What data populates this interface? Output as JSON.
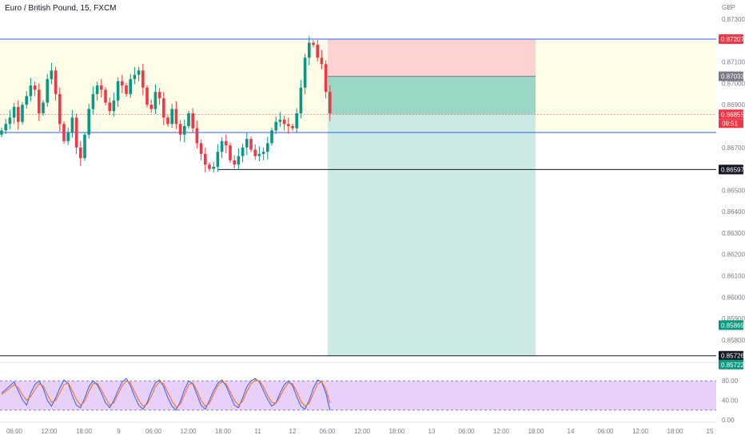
{
  "header": {
    "symbol_title": "Euro / British Pound, 15, FXCM",
    "currency": "GBP"
  },
  "price_axis": {
    "ticks": [
      "0.87300",
      "0.87100",
      "0.87000",
      "0.86900",
      "0.86700",
      "0.86500",
      "0.86400",
      "0.86300",
      "0.86200",
      "0.86100",
      "0.86000",
      "0.85900",
      "0.85800"
    ],
    "tick_values": [
      0.873,
      0.871,
      0.87,
      0.869,
      0.867,
      0.865,
      0.864,
      0.863,
      0.862,
      0.861,
      0.86,
      0.859,
      0.858
    ]
  },
  "price_tags": [
    {
      "label": "0.87207",
      "value": 0.87207,
      "bg": "#f23645",
      "color": "#ffffff"
    },
    {
      "label": "0.87033",
      "value": 0.87033,
      "bg": "#787b86",
      "color": "#ffffff"
    },
    {
      "label": "0.86855",
      "value": 0.86855,
      "bg": "#f23645",
      "color": "#ffffff"
    },
    {
      "label": "0.86597",
      "value": 0.86597,
      "bg": "#131722",
      "color": "#ffffff"
    },
    {
      "label": "0.85869",
      "value": 0.85869,
      "bg": "#089981",
      "color": "#ffffff"
    },
    {
      "label": "0.85726",
      "value": 0.85726,
      "bg": "#131722",
      "color": "#ffffff"
    },
    {
      "label": "0.85722",
      "value": 0.85722,
      "bg": "#089981",
      "color": "#ffffff"
    }
  ],
  "countdown": "09:51",
  "time_axis": [
    "06:00",
    "12:00",
    "18:00",
    "9",
    "06:00",
    "12:00",
    "18:00",
    "11",
    "12",
    "06:00",
    "12:00",
    "18:00",
    "13",
    "06:00",
    "12:00",
    "18:00",
    "14",
    "06:00",
    "12:00",
    "18:00",
    "15"
  ],
  "oscillator": {
    "labels": [
      "80.00",
      "40.00",
      "0.00"
    ],
    "levels": [
      80,
      40,
      0
    ],
    "upper_band": 80,
    "lower_band": 20
  },
  "chart_data": {
    "type": "candlestick",
    "title": "Euro / British Pound, 15, FXCM",
    "ylim": [
      0.8571,
      0.8736
    ],
    "horizontal_levels": [
      {
        "value": 0.87207,
        "color": "#2962ff"
      },
      {
        "value": 0.8677,
        "color": "#2962ff"
      },
      {
        "value": 0.86597,
        "color": "#131722"
      },
      {
        "value": 0.85726,
        "color": "#131722"
      }
    ],
    "current_price": 0.86855,
    "position": {
      "side": "short",
      "stop": 0.87207,
      "entry": 0.87033,
      "target": 0.85726
    },
    "zone": {
      "top": 0.87207,
      "bottom": 0.8677
    },
    "close_path": [
      0.8678,
      0.8681,
      0.8684,
      0.8689,
      0.8682,
      0.869,
      0.8694,
      0.8699,
      0.8697,
      0.8686,
      0.8691,
      0.8702,
      0.8706,
      0.8695,
      0.8681,
      0.8673,
      0.8677,
      0.8684,
      0.867,
      0.8665,
      0.8676,
      0.8688,
      0.8695,
      0.8699,
      0.8697,
      0.8691,
      0.8687,
      0.8692,
      0.8701,
      0.8699,
      0.8695,
      0.8702,
      0.8704,
      0.8706,
      0.8698,
      0.869,
      0.8688,
      0.8696,
      0.8693,
      0.8684,
      0.8681,
      0.8688,
      0.8681,
      0.8676,
      0.868,
      0.8686,
      0.8679,
      0.8672,
      0.8667,
      0.8662,
      0.866,
      0.8661,
      0.8668,
      0.8673,
      0.8671,
      0.8664,
      0.8662,
      0.8666,
      0.867,
      0.8674,
      0.8669,
      0.8666,
      0.8667,
      0.8668,
      0.8672,
      0.8678,
      0.8682,
      0.8683,
      0.8681,
      0.868,
      0.8679,
      0.8686,
      0.8698,
      0.8712,
      0.8719,
      0.8718,
      0.8712,
      0.8709,
      0.8696,
      0.8686
    ],
    "oscillator_k": [
      55,
      62,
      70,
      78,
      60,
      42,
      30,
      55,
      72,
      80,
      65,
      40,
      28,
      45,
      65,
      82,
      75,
      50,
      30,
      25,
      45,
      68,
      80,
      72,
      55,
      35,
      25,
      40,
      60,
      78,
      85,
      70,
      48,
      30,
      22,
      35,
      58,
      76,
      82,
      68,
      45,
      28,
      20,
      38,
      62,
      80,
      74,
      52,
      30,
      22,
      40,
      60,
      75,
      82,
      70,
      50,
      30,
      25,
      45,
      68,
      80,
      85,
      78,
      60,
      42,
      28,
      35,
      55,
      72,
      80,
      70,
      48,
      28,
      22,
      40,
      65,
      82,
      78,
      55,
      20
    ],
    "oscillator_d": [
      52,
      58,
      65,
      72,
      66,
      52,
      40,
      48,
      62,
      74,
      70,
      52,
      36,
      40,
      55,
      72,
      76,
      60,
      42,
      30,
      38,
      58,
      74,
      75,
      62,
      45,
      30,
      35,
      52,
      70,
      80,
      76,
      58,
      40,
      28,
      32,
      48,
      68,
      78,
      74,
      56,
      38,
      26,
      32,
      52,
      72,
      76,
      60,
      40,
      28,
      34,
      52,
      70,
      78,
      74,
      58,
      40,
      30,
      38,
      58,
      74,
      82,
      80,
      68,
      50,
      36,
      34,
      48,
      64,
      76,
      74,
      58,
      38,
      28,
      34,
      54,
      74,
      78,
      64,
      35
    ]
  }
}
